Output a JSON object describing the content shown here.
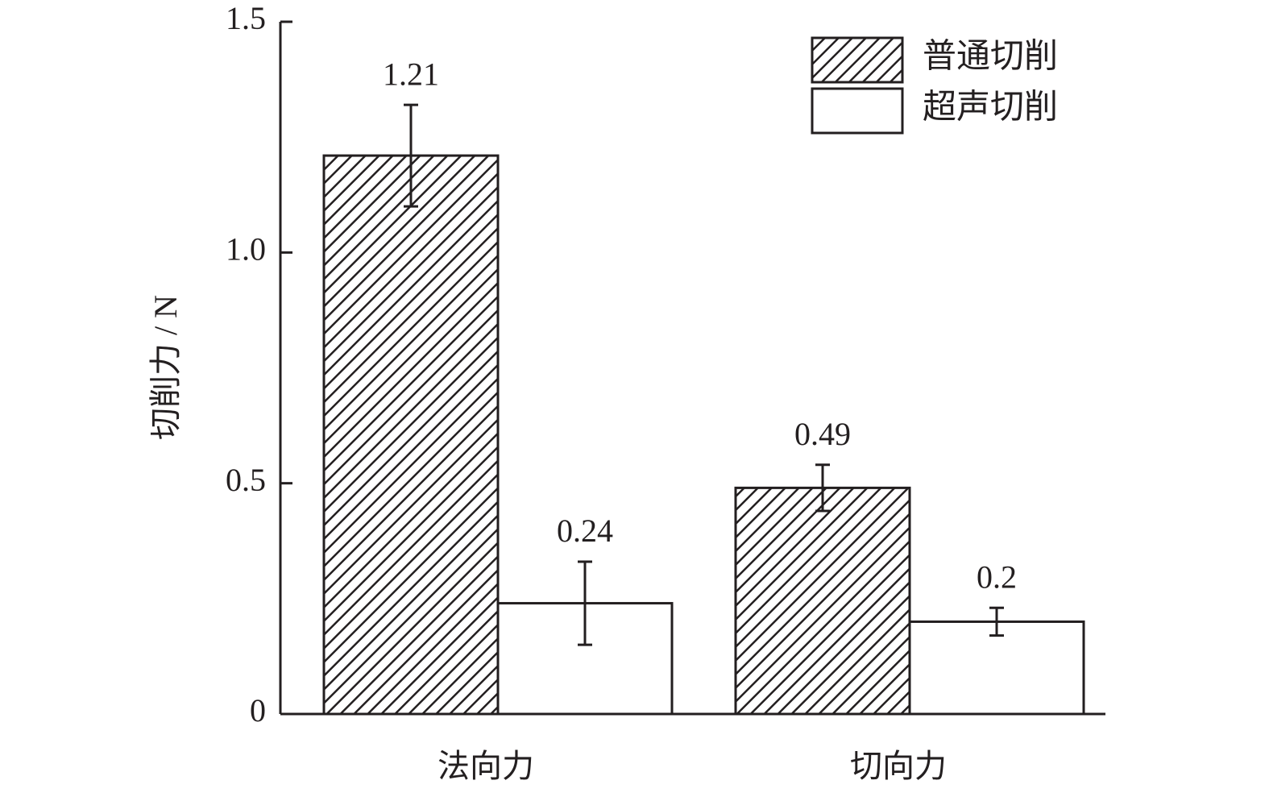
{
  "chart_data": {
    "type": "bar",
    "ylabel": "切削力 / N",
    "categories": [
      "法向力",
      "切向力"
    ],
    "series": [
      {
        "name": "普通切削",
        "fill": "hatch",
        "values": [
          1.21,
          0.49
        ],
        "errors": [
          0.11,
          0.05
        ]
      },
      {
        "name": "超声切削",
        "fill": "white",
        "values": [
          0.24,
          0.2
        ],
        "errors": [
          0.09,
          0.03
        ]
      }
    ],
    "ylim": [
      0,
      1.5
    ],
    "yticks": [
      0,
      0.5,
      {
        "value": 1,
        "label": "1.0"
      },
      {
        "value": 1.5,
        "label": "1.5"
      }
    ],
    "legend": "upper right"
  }
}
